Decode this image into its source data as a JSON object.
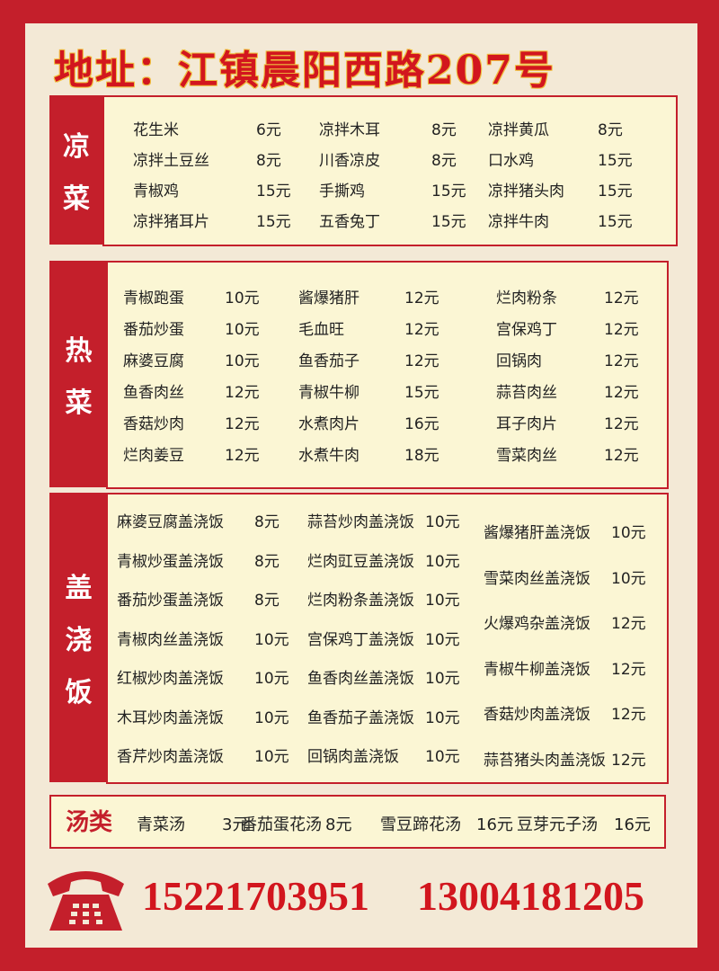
{
  "title": "地址：江镇晨阳西路207号",
  "sections": {
    "cold": {
      "label": [
        "凉",
        "菜"
      ],
      "columns": [
        [
          [
            "花生米",
            "6元"
          ],
          [
            "凉拌土豆丝",
            "8元"
          ],
          [
            "青椒鸡",
            "15元"
          ],
          [
            "凉拌猪耳片",
            "15元"
          ]
        ],
        [
          [
            "凉拌木耳",
            "8元"
          ],
          [
            "川香凉皮",
            "8元"
          ],
          [
            "手撕鸡",
            "15元"
          ],
          [
            "五香兔丁",
            "15元"
          ]
        ],
        [
          [
            "凉拌黄瓜",
            "8元"
          ],
          [
            "口水鸡",
            "15元"
          ],
          [
            "凉拌猪头肉",
            "15元"
          ],
          [
            "凉拌牛肉",
            "15元"
          ]
        ]
      ]
    },
    "hot": {
      "label": [
        "热",
        "菜"
      ],
      "columns": [
        [
          [
            "青椒跑蛋",
            "10元"
          ],
          [
            "番茄炒蛋",
            "10元"
          ],
          [
            "麻婆豆腐",
            "10元"
          ],
          [
            "鱼香肉丝",
            "12元"
          ],
          [
            "香菇炒肉",
            "12元"
          ],
          [
            "烂肉姜豆",
            "12元"
          ]
        ],
        [
          [
            "酱爆猪肝",
            "12元"
          ],
          [
            "毛血旺",
            "12元"
          ],
          [
            "鱼香茄子",
            "12元"
          ],
          [
            "青椒牛柳",
            "15元"
          ],
          [
            "水煮肉片",
            "16元"
          ],
          [
            "水煮牛肉",
            "18元"
          ]
        ],
        [
          [
            "烂肉粉条",
            "12元"
          ],
          [
            "宫保鸡丁",
            "12元"
          ],
          [
            "回锅肉",
            "12元"
          ],
          [
            "蒜苔肉丝",
            "12元"
          ],
          [
            "耳子肉片",
            "12元"
          ],
          [
            "雪菜肉丝",
            "12元"
          ]
        ]
      ]
    },
    "rice": {
      "label": [
        "盖",
        "浇",
        "饭"
      ],
      "columns": [
        [
          [
            "麻婆豆腐盖浇饭",
            "8元"
          ],
          [
            "青椒炒蛋盖浇饭",
            "8元"
          ],
          [
            "番茄炒蛋盖浇饭",
            "8元"
          ],
          [
            "青椒肉丝盖浇饭",
            "10元"
          ],
          [
            "红椒炒肉盖浇饭",
            "10元"
          ],
          [
            "木耳炒肉盖浇饭",
            "10元"
          ],
          [
            "香芹炒肉盖浇饭",
            "10元"
          ]
        ],
        [
          [
            "蒜苔炒肉盖浇饭",
            "10元"
          ],
          [
            "烂肉豇豆盖浇饭",
            "10元"
          ],
          [
            "烂肉粉条盖浇饭",
            "10元"
          ],
          [
            "宫保鸡丁盖浇饭",
            "10元"
          ],
          [
            "鱼香肉丝盖浇饭",
            "10元"
          ],
          [
            "鱼香茄子盖浇饭",
            "10元"
          ],
          [
            "回锅肉盖浇饭",
            "10元"
          ]
        ],
        [
          [
            "酱爆猪肝盖浇饭",
            "10元"
          ],
          [
            "雪菜肉丝盖浇饭",
            "10元"
          ],
          [
            "火爆鸡杂盖浇饭",
            "12元"
          ],
          [
            "青椒牛柳盖浇饭",
            "12元"
          ],
          [
            "香菇炒肉盖浇饭",
            "12元"
          ],
          [
            "蒜苔猪头肉盖浇饭",
            "12元"
          ]
        ]
      ]
    },
    "soup": {
      "label": "汤类",
      "items": [
        [
          "青菜汤",
          "3元"
        ],
        [
          "番茄蛋花汤",
          "8元"
        ],
        [
          "雪豆蹄花汤",
          "16元"
        ],
        [
          "豆芽元子汤",
          "16元"
        ]
      ]
    }
  },
  "phones": [
    "15221703951",
    "13004181205"
  ],
  "colors": {
    "brand_red": "#c41f2b",
    "menu_bg": "#fbf6d4"
  }
}
